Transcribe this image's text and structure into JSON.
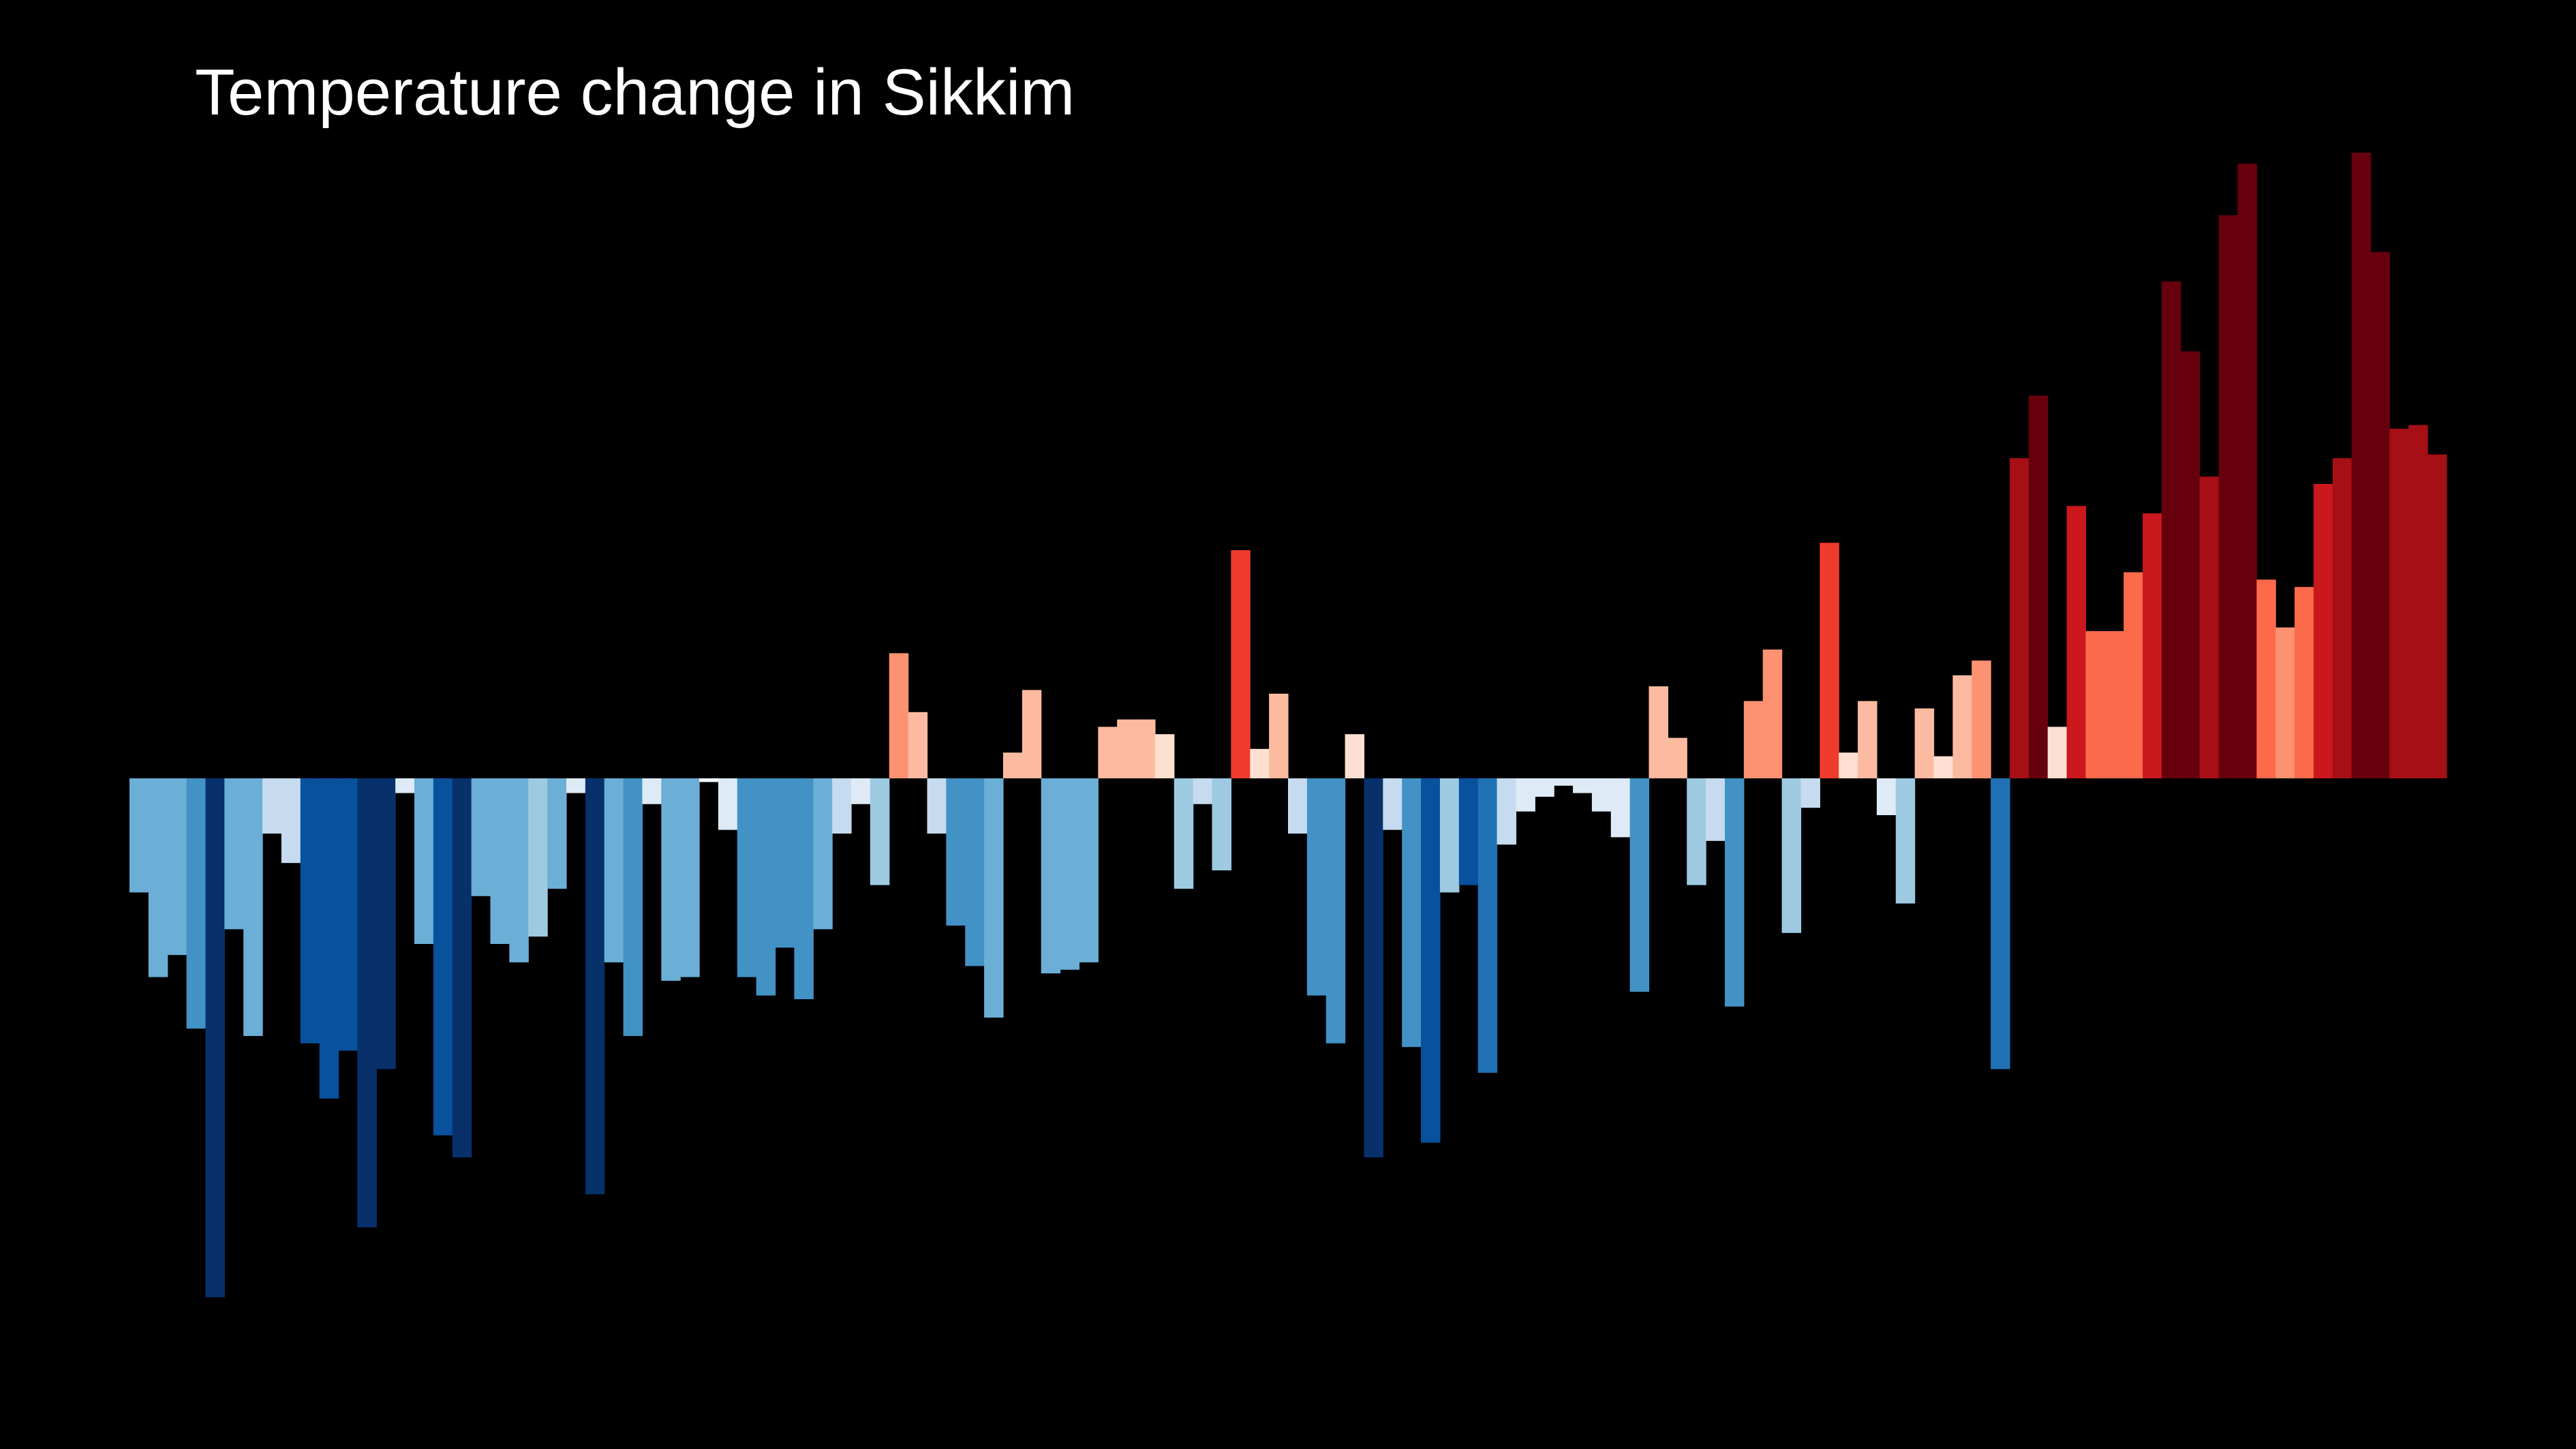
{
  "chart_data": {
    "type": "bar",
    "title": "Temperature change in Sikkim",
    "xlabel": "",
    "ylabel": "",
    "grid": false,
    "legend": "none",
    "background": "#000000",
    "ylim": [
      -1.41,
      1.7
    ],
    "values": [
      -0.31,
      -0.54,
      -0.48,
      -0.68,
      -1.41,
      -0.41,
      -0.7,
      -0.15,
      -0.23,
      -0.72,
      -0.87,
      -0.74,
      -1.22,
      -0.79,
      -0.04,
      -0.45,
      -0.97,
      -1.03,
      -0.32,
      -0.45,
      -0.5,
      -0.43,
      -0.3,
      -0.04,
      -1.13,
      -0.5,
      -0.7,
      -0.07,
      -0.55,
      -0.54,
      -0.01,
      -0.14,
      -0.54,
      -0.59,
      -0.46,
      -0.6,
      -0.41,
      -0.15,
      -0.07,
      -0.29,
      0.34,
      0.18,
      -0.15,
      -0.4,
      -0.51,
      -0.65,
      0.07,
      0.24,
      -0.53,
      -0.52,
      -0.5,
      0.14,
      0.16,
      0.16,
      0.12,
      -0.3,
      -0.07,
      -0.25,
      0.62,
      0.08,
      0.23,
      -0.15,
      -0.59,
      -0.72,
      0.12,
      -1.03,
      -0.14,
      -0.73,
      -0.99,
      -0.31,
      -0.29,
      -0.8,
      -0.18,
      -0.09,
      -0.05,
      -0.02,
      -0.04,
      -0.09,
      -0.16,
      -0.58,
      0.25,
      0.11,
      -0.29,
      -0.17,
      -0.62,
      0.21,
      0.35,
      -0.42,
      -0.08,
      0.64,
      0.07,
      0.21,
      -0.1,
      -0.34,
      0.19,
      0.06,
      0.28,
      0.32,
      -0.79,
      0.87,
      1.04,
      0.14,
      0.74,
      0.4,
      0.4,
      0.56,
      0.72,
      1.35,
      1.16,
      0.82,
      1.53,
      1.67,
      0.54,
      0.41,
      0.52,
      0.8,
      0.87,
      1.7,
      1.43,
      0.95,
      0.96,
      0.88
    ],
    "colors": [
      "#6baed6",
      "#6baed6",
      "#6baed6",
      "#4292c6",
      "#08306b",
      "#6baed6",
      "#6baed6",
      "#c6dbef",
      "#c6dbef",
      "#08519c",
      "#08519c",
      "#08519c",
      "#08306b",
      "#08306b",
      "#deebf7",
      "#6baed6",
      "#08519c",
      "#08306b",
      "#6baed6",
      "#6baed6",
      "#6baed6",
      "#9ecae1",
      "#6baed6",
      "#deebf7",
      "#08306b",
      "#6baed6",
      "#4292c6",
      "#deebf7",
      "#6baed6",
      "#6baed6",
      "#f7fbff",
      "#deebf7",
      "#4292c6",
      "#4292c6",
      "#4292c6",
      "#4292c6",
      "#6baed6",
      "#c6dbef",
      "#deebf7",
      "#9ecae1",
      "#fc9272",
      "#fcbba1",
      "#c6dbef",
      "#4292c6",
      "#4292c6",
      "#6baed6",
      "#fcbba1",
      "#fcbba1",
      "#6baed6",
      "#6baed6",
      "#6baed6",
      "#fcbba1",
      "#fcbba1",
      "#fcbba1",
      "#fee0d2",
      "#9ecae1",
      "#c6dbef",
      "#9ecae1",
      "#ef3b2c",
      "#fee0d2",
      "#fcbba1",
      "#c6dbef",
      "#4292c6",
      "#4292c6",
      "#fee0d2",
      "#08306b",
      "#c6dbef",
      "#4292c6",
      "#08519c",
      "#9ecae1",
      "#08519c",
      "#2171b5",
      "#c6dbef",
      "#deebf7",
      "#deebf7",
      "#deebf7",
      "#deebf7",
      "#deebf7",
      "#deebf7",
      "#4292c6",
      "#fcbba1",
      "#fcbba1",
      "#9ecae1",
      "#c6dbef",
      "#4292c6",
      "#fc9272",
      "#fc9272",
      "#9ecae1",
      "#c6dbef",
      "#ef3b2c",
      "#fee0d2",
      "#fcbba1",
      "#deebf7",
      "#9ecae1",
      "#fcbba1",
      "#fee0d2",
      "#fcbba1",
      "#fc9272",
      "#2171b5",
      "#a50f15",
      "#67000d",
      "#fee0d2",
      "#cb181d",
      "#fb6a4a",
      "#fb6a4a",
      "#fb6a4a",
      "#cb181d",
      "#67000d",
      "#67000d",
      "#a50f15",
      "#67000d",
      "#67000d",
      "#fb6a4a",
      "#fc9272",
      "#fb6a4a",
      "#cb181d",
      "#a50f15",
      "#67000d",
      "#67000d",
      "#a50f15",
      "#a50f15",
      "#a50f15"
    ]
  }
}
